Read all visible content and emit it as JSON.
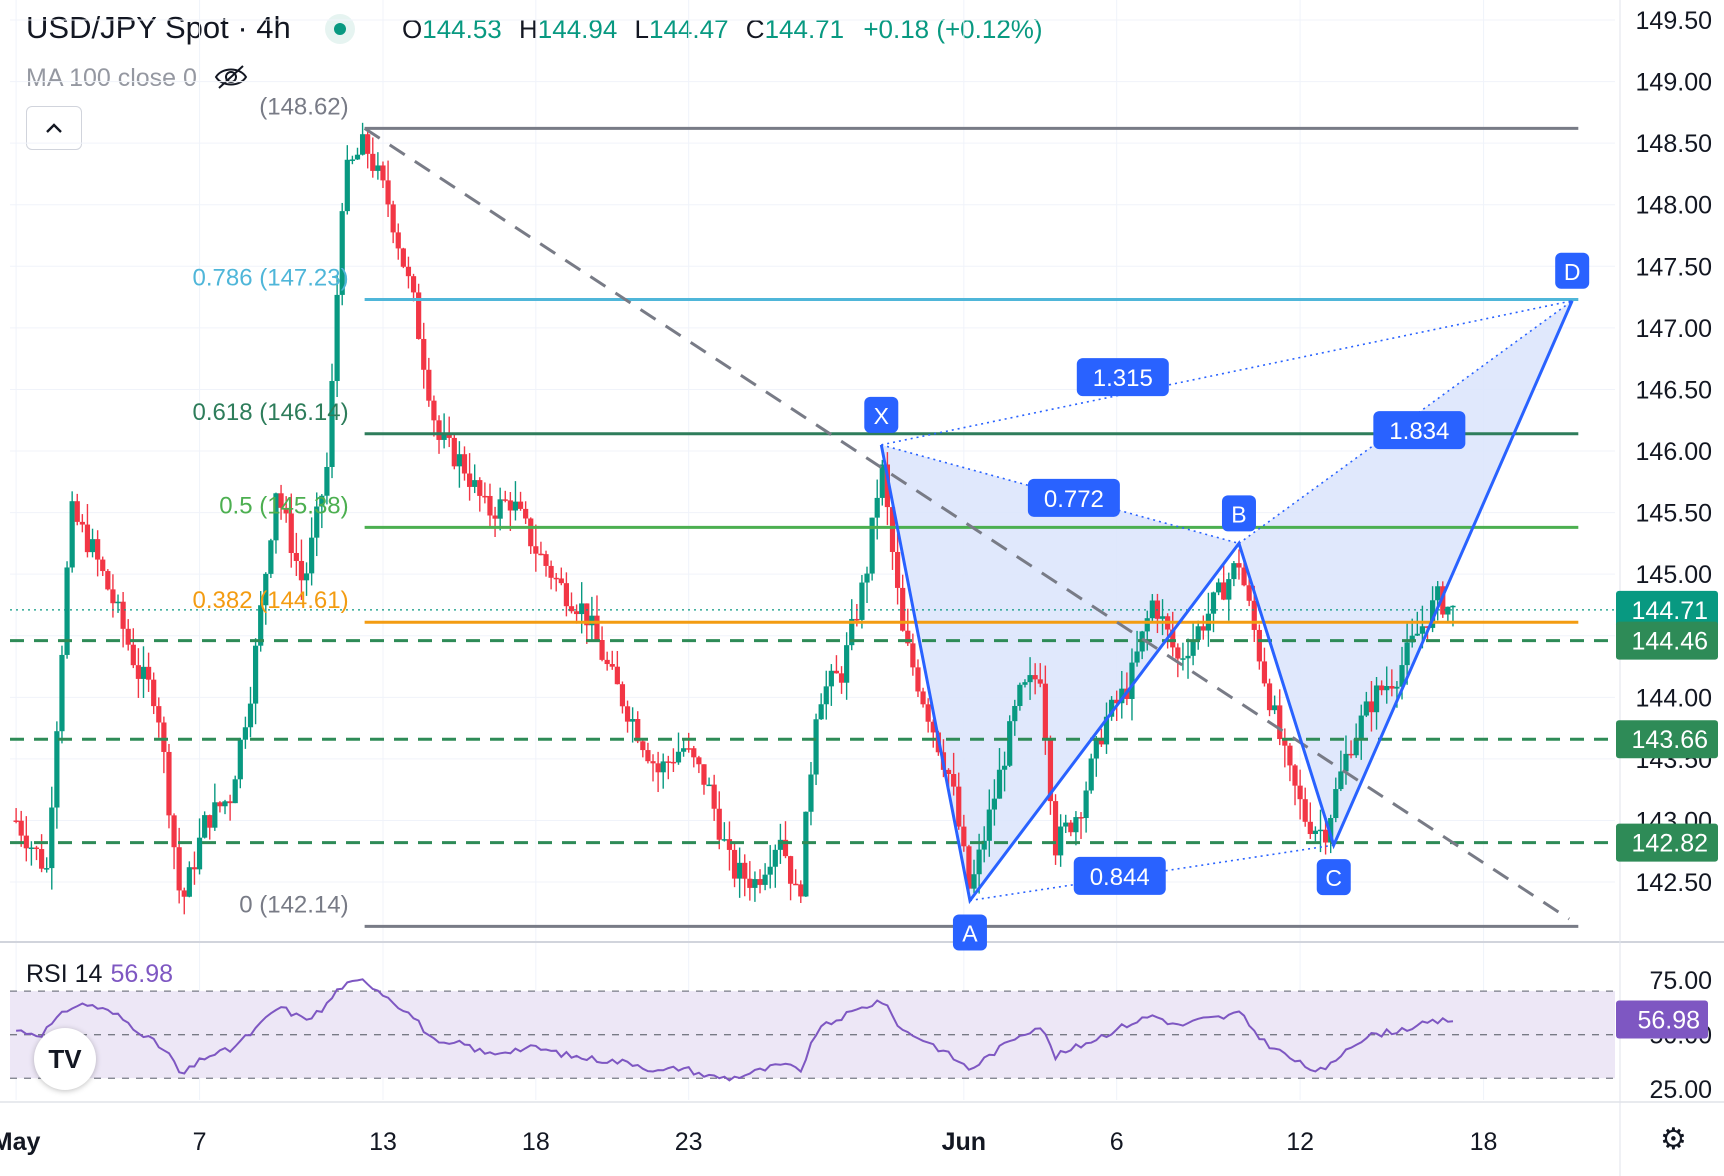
{
  "header": {
    "symbol_title": "USD/JPY Spot · 4h",
    "open_label": "O",
    "open": "144.53",
    "high_label": "H",
    "high": "144.94",
    "low_label": "L",
    "low": "144.47",
    "close_label": "C",
    "close": "144.71",
    "change": "+0.18 (+0.12%)",
    "ma_label": "MA 100 close 0",
    "collapse_icon": "chevron-up-icon",
    "visibility_icon": "eye-off-icon"
  },
  "colors": {
    "up": "#089981",
    "down": "#f23645",
    "pattern": "#2962ff",
    "pattern_fill": "#dbe4fb",
    "fib_0786": "#4fb6d9",
    "fib_0618": "#2e7d5b",
    "fib_05": "#4caf50",
    "fib_0382": "#f39c12",
    "fib_0": "#787b86",
    "dashed_support": "#2e8b57",
    "rsi": "#7e57c2",
    "rsi_band": "#ede7f6"
  },
  "chart_data": {
    "type": "candlestick",
    "instrument": "USD/JPY Spot",
    "timeframe": "4h",
    "x_ticks": [
      "May",
      "7",
      "13",
      "18",
      "23",
      "Jun",
      "6",
      "12",
      "18"
    ],
    "x_tick_days": [
      1,
      7,
      13,
      18,
      23,
      32,
      37,
      43,
      49
    ],
    "x_range_days": [
      0.8,
      53.3
    ],
    "y_ticks": [
      "142.50",
      "143.00",
      "143.50",
      "144.00",
      "144.50",
      "145.00",
      "145.50",
      "146.00",
      "146.50",
      "147.00",
      "147.50",
      "148.00",
      "148.50",
      "149.00",
      "149.50"
    ],
    "y_range": [
      142.07,
      149.5
    ],
    "scale_labels": [
      {
        "value": 144.71,
        "text": "144.71",
        "color": "#089981"
      },
      {
        "value": 144.46,
        "text": "144.46",
        "color": "#2e8b57"
      },
      {
        "value": 143.66,
        "text": "143.66",
        "color": "#2e8b57"
      },
      {
        "value": 142.82,
        "text": "142.82",
        "color": "#2e8b57"
      }
    ],
    "fibonacci": [
      {
        "ratio": "0",
        "price": 142.14,
        "label": "0 (142.14)",
        "color": "#787b86"
      },
      {
        "ratio": "0.382",
        "price": 144.61,
        "label": "0.382 (144.61)",
        "color": "#f39c12"
      },
      {
        "ratio": "0.5",
        "price": 145.38,
        "label": "0.5 (145.38)",
        "color": "#4caf50"
      },
      {
        "ratio": "0.618",
        "price": 146.14,
        "label": "0.618 (146.14)",
        "color": "#2e7d5b"
      },
      {
        "ratio": "0.786",
        "price": 147.23,
        "label": "0.786 (147.23)",
        "color": "#4fb6d9"
      },
      {
        "ratio": "1",
        "price": 148.62,
        "label": "(148.62)",
        "color": "#787b86"
      }
    ],
    "horizontal_levels": [
      144.46,
      143.66,
      142.82
    ],
    "trendline": {
      "from": {
        "day": 12.4,
        "price": 148.62
      },
      "to": {
        "day": 51.8,
        "price": 142.2
      }
    },
    "harmonic_pattern": {
      "points": [
        {
          "label": "X",
          "day": 29.3,
          "price": 146.05
        },
        {
          "label": "A",
          "day": 32.2,
          "price": 142.35
        },
        {
          "label": "B",
          "day": 41.0,
          "price": 145.25
        },
        {
          "label": "C",
          "day": 44.1,
          "price": 142.8
        },
        {
          "label": "D",
          "day": 51.9,
          "price": 147.22
        }
      ],
      "ratios": [
        {
          "text": "0.772",
          "day": 35.6,
          "price": 145.62
        },
        {
          "text": "1.315",
          "day": 37.2,
          "price": 146.6
        },
        {
          "text": "1.834",
          "day": 46.9,
          "price": 146.17
        },
        {
          "text": "0.844",
          "day": 37.1,
          "price": 142.55
        }
      ]
    },
    "close_anchors": [
      [
        1.0,
        143.0
      ],
      [
        2.0,
        142.6
      ],
      [
        2.8,
        145.5
      ],
      [
        3.5,
        145.2
      ],
      [
        4.3,
        144.7
      ],
      [
        5.0,
        144.2
      ],
      [
        5.6,
        144.0
      ],
      [
        6.4,
        142.3
      ],
      [
        7.2,
        143.0
      ],
      [
        8.0,
        143.2
      ],
      [
        8.7,
        144.1
      ],
      [
        9.5,
        145.7
      ],
      [
        10.4,
        144.9
      ],
      [
        11.2,
        145.9
      ],
      [
        11.7,
        148.2
      ],
      [
        12.4,
        148.5
      ],
      [
        13.2,
        148.0
      ],
      [
        14.0,
        147.2
      ],
      [
        14.8,
        146.1
      ],
      [
        15.6,
        145.9
      ],
      [
        16.4,
        145.5
      ],
      [
        17.2,
        145.6
      ],
      [
        18.0,
        145.2
      ],
      [
        18.8,
        144.9
      ],
      [
        19.6,
        144.7
      ],
      [
        20.4,
        144.2
      ],
      [
        21.2,
        143.8
      ],
      [
        22.0,
        143.4
      ],
      [
        22.8,
        143.6
      ],
      [
        23.6,
        143.3
      ],
      [
        24.4,
        142.6
      ],
      [
        25.2,
        142.5
      ],
      [
        26.0,
        142.9
      ],
      [
        26.6,
        142.3
      ],
      [
        27.2,
        144.0
      ],
      [
        28.0,
        144.2
      ],
      [
        28.8,
        145.0
      ],
      [
        29.3,
        145.9
      ],
      [
        30.0,
        144.5
      ],
      [
        30.8,
        143.9
      ],
      [
        31.6,
        143.3
      ],
      [
        32.2,
        142.4
      ],
      [
        33.0,
        143.2
      ],
      [
        33.8,
        144.0
      ],
      [
        34.5,
        144.2
      ],
      [
        35.0,
        142.8
      ],
      [
        35.8,
        143.1
      ],
      [
        36.6,
        143.8
      ],
      [
        37.4,
        144.1
      ],
      [
        38.2,
        144.8
      ],
      [
        39.0,
        144.3
      ],
      [
        39.8,
        144.6
      ],
      [
        40.5,
        144.9
      ],
      [
        41.0,
        145.1
      ],
      [
        41.8,
        144.2
      ],
      [
        42.6,
        143.4
      ],
      [
        43.2,
        143.0
      ],
      [
        43.8,
        142.9
      ],
      [
        44.6,
        143.6
      ],
      [
        45.4,
        144.0
      ],
      [
        46.2,
        144.2
      ],
      [
        46.8,
        144.5
      ],
      [
        47.5,
        144.8
      ],
      [
        48.0,
        144.7
      ]
    ],
    "rsi": {
      "label": "RSI 14",
      "value": "56.98",
      "value_num": 56.98,
      "y_ticks": [
        "25.00",
        "50.00",
        "75.00"
      ],
      "band": [
        30,
        70
      ],
      "y_range": [
        20,
        82
      ],
      "anchors": [
        [
          1.0,
          52
        ],
        [
          1.8,
          50
        ],
        [
          2.8,
          63
        ],
        [
          3.4,
          64
        ],
        [
          4.3,
          59
        ],
        [
          5.2,
          50
        ],
        [
          6.0,
          41
        ],
        [
          6.4,
          31
        ],
        [
          7.2,
          40
        ],
        [
          8.0,
          43
        ],
        [
          8.8,
          52
        ],
        [
          9.6,
          63
        ],
        [
          10.4,
          57
        ],
        [
          11.0,
          61
        ],
        [
          11.6,
          72
        ],
        [
          12.4,
          75
        ],
        [
          13.2,
          67
        ],
        [
          14.0,
          58
        ],
        [
          14.8,
          45
        ],
        [
          15.6,
          46
        ],
        [
          16.4,
          41
        ],
        [
          17.2,
          43
        ],
        [
          18.0,
          44
        ],
        [
          19.2,
          40
        ],
        [
          20.4,
          38
        ],
        [
          21.2,
          37
        ],
        [
          22.0,
          33
        ],
        [
          22.8,
          35
        ],
        [
          23.6,
          31
        ],
        [
          24.4,
          30
        ],
        [
          25.2,
          33
        ],
        [
          26.0,
          36
        ],
        [
          26.7,
          34
        ],
        [
          27.2,
          52
        ],
        [
          28.0,
          58
        ],
        [
          28.8,
          63
        ],
        [
          29.3,
          66
        ],
        [
          30.0,
          52
        ],
        [
          30.8,
          47
        ],
        [
          31.6,
          40
        ],
        [
          32.2,
          34
        ],
        [
          33.0,
          42
        ],
        [
          33.8,
          50
        ],
        [
          34.5,
          54
        ],
        [
          35.0,
          40
        ],
        [
          35.8,
          45
        ],
        [
          36.6,
          50
        ],
        [
          37.4,
          55
        ],
        [
          38.2,
          59
        ],
        [
          39.0,
          54
        ],
        [
          39.8,
          57
        ],
        [
          40.5,
          58
        ],
        [
          41.0,
          60
        ],
        [
          41.8,
          47
        ],
        [
          42.6,
          40
        ],
        [
          43.2,
          35
        ],
        [
          43.8,
          33
        ],
        [
          44.6,
          45
        ],
        [
          45.4,
          50
        ],
        [
          46.2,
          52
        ],
        [
          46.8,
          54
        ],
        [
          47.5,
          56
        ],
        [
          48.0,
          56.98
        ]
      ]
    }
  }
}
